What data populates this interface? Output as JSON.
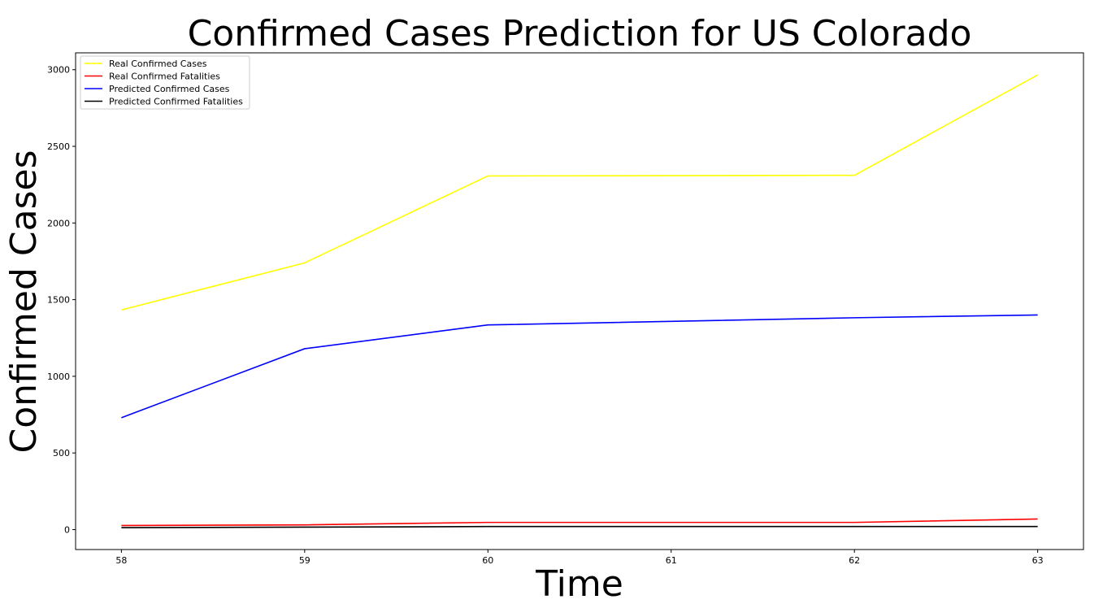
{
  "chart_data": {
    "type": "line",
    "title": "Confirmed Cases Prediction for US Colorado",
    "xlabel": "Time",
    "ylabel": "Confirmed Cases",
    "x": [
      58,
      59,
      60,
      61,
      62,
      63
    ],
    "xlim": [
      57.75,
      63.25
    ],
    "ylim": [
      -130,
      3110
    ],
    "xticks": [
      58,
      59,
      60,
      61,
      62,
      63
    ],
    "yticks": [
      0,
      500,
      1000,
      1500,
      2000,
      2500,
      3000
    ],
    "grid": false,
    "legend_position": "top-left",
    "series": [
      {
        "name": "Real Confirmed Cases",
        "color": "#ffff00",
        "x": [
          58,
          59,
          60,
          62,
          63
        ],
        "values": [
          1433,
          1740,
          2307,
          2311,
          2966
        ]
      },
      {
        "name": "Real Confirmed Fatalities",
        "color": "#ff0000",
        "x": [
          58,
          59,
          60,
          62,
          63
        ],
        "values": [
          27,
          31,
          47,
          47,
          69
        ]
      },
      {
        "name": "Predicted Confirmed Cases",
        "color": "#0000ff",
        "x": [
          58,
          59,
          60,
          62,
          63
        ],
        "values": [
          730,
          1180,
          1335,
          1382,
          1400
        ]
      },
      {
        "name": "Predicted Confirmed Fatalities",
        "color": "#000000",
        "x": [
          58,
          59,
          60,
          62,
          63
        ],
        "values": [
          13,
          16,
          20,
          20,
          20
        ]
      }
    ]
  }
}
